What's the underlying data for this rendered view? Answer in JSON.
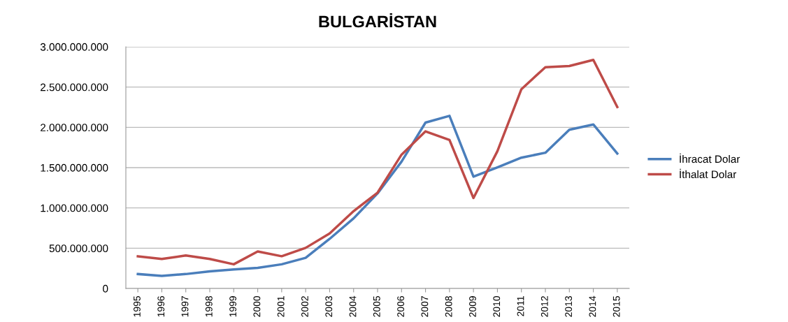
{
  "chart_data": {
    "type": "line",
    "title": "BULGARİSTAN",
    "categories": [
      "1995",
      "1996",
      "1997",
      "1998",
      "1999",
      "2000",
      "2001",
      "2002",
      "2003",
      "2004",
      "2005",
      "2006",
      "2007",
      "2008",
      "2009",
      "2010",
      "2011",
      "2012",
      "2013",
      "2014",
      "2015"
    ],
    "series": [
      {
        "name": "İhracat Dolar",
        "color": "#4a7ebb",
        "values": [
          179000000,
          156000000,
          179000000,
          213000000,
          236000000,
          256000000,
          300000000,
          380000000,
          616000000,
          870000000,
          1180000000,
          1575000000,
          2059000000,
          2143000000,
          1388000000,
          1503000000,
          1624000000,
          1685000000,
          1970000000,
          2036000000,
          1676000000
        ]
      },
      {
        "name": "İthalat Dolar",
        "color": "#be4b48",
        "values": [
          400000000,
          366000000,
          409000000,
          366000000,
          300000000,
          460000000,
          400000000,
          504000000,
          683000000,
          960000000,
          1190000000,
          1661000000,
          1950000000,
          1843000000,
          1123000000,
          1705000000,
          2474000000,
          2747000000,
          2762000000,
          2837000000,
          2252000000
        ]
      }
    ],
    "ylim": [
      0,
      3000000000
    ],
    "yticks": [
      {
        "value": 0,
        "label": "0"
      },
      {
        "value": 500000000,
        "label": "500.000.000"
      },
      {
        "value": 1000000000,
        "label": "1.000.000.000"
      },
      {
        "value": 1500000000,
        "label": "1.500.000.000"
      },
      {
        "value": 2000000000,
        "label": "2.000.000.000"
      },
      {
        "value": 2500000000,
        "label": "2.500.000.000"
      },
      {
        "value": 3000000000,
        "label": "3.000.000.000"
      }
    ],
    "grid": "y",
    "legend": "right",
    "marker": "none",
    "line_style": "solid"
  }
}
